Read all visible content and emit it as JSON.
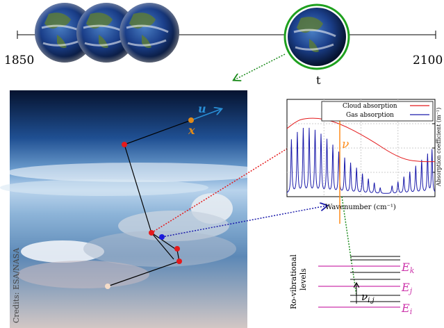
{
  "timeline": {
    "start_label": "1850",
    "end_label": "2100",
    "current_label": "t"
  },
  "photo": {
    "credit": "Credits: ESA/NASA",
    "ray_label_u": "u",
    "ray_label_x": "x"
  },
  "spectrum": {
    "xlabel": "Wavenumber (cm⁻¹)",
    "ylabel": "Absorption coefficient (m⁻¹)",
    "nu_label": "ν",
    "legend": [
      {
        "name": "Cloud absorption",
        "color": "#e41a1c"
      },
      {
        "name": "Gas absorption",
        "color": "#1a1aaa"
      }
    ]
  },
  "levels": {
    "title": "Ro-vibrational levels",
    "labels": {
      "k": "E",
      "j": "E",
      "i": "E"
    },
    "subscripts": {
      "k": "k",
      "j": "j",
      "i": "i"
    },
    "transition": "ν",
    "transition_sub": "i,j"
  },
  "colors": {
    "cloud": "#e41a1c",
    "gas": "#1a1aaa",
    "nu": "#ff8c1a",
    "levels": "#cc33aa",
    "u_arrow": "#2a8fd6",
    "x_point": "#e08a1a"
  },
  "chart_data": {
    "type": "line",
    "title": "",
    "xlabel": "Wavenumber (cm⁻¹)",
    "ylabel": "Absorption coefficient (m⁻¹)",
    "series": [
      {
        "name": "Cloud absorption",
        "points": [
          [
            0,
            0.7
          ],
          [
            0.05,
            0.76
          ],
          [
            0.1,
            0.8
          ],
          [
            0.2,
            0.81
          ],
          [
            0.3,
            0.78
          ],
          [
            0.4,
            0.72
          ],
          [
            0.5,
            0.64
          ],
          [
            0.6,
            0.55
          ],
          [
            0.7,
            0.45
          ],
          [
            0.8,
            0.38
          ],
          [
            0.9,
            0.36
          ],
          [
            1.0,
            0.36
          ]
        ]
      },
      {
        "name": "Gas absorption",
        "lines": [
          [
            0.03,
            0.55
          ],
          [
            0.07,
            0.62
          ],
          [
            0.11,
            0.66
          ],
          [
            0.15,
            0.66
          ],
          [
            0.19,
            0.64
          ],
          [
            0.23,
            0.6
          ],
          [
            0.27,
            0.55
          ],
          [
            0.31,
            0.49
          ],
          [
            0.35,
            0.42
          ],
          [
            0.39,
            0.36
          ],
          [
            0.43,
            0.31
          ],
          [
            0.47,
            0.26
          ],
          [
            0.51,
            0.2
          ],
          [
            0.55,
            0.15
          ],
          [
            0.59,
            0.11
          ],
          [
            0.63,
            0.06
          ],
          [
            0.71,
            0.08
          ],
          [
            0.75,
            0.12
          ],
          [
            0.79,
            0.17
          ],
          [
            0.83,
            0.22
          ],
          [
            0.87,
            0.28
          ],
          [
            0.91,
            0.34
          ],
          [
            0.95,
            0.4
          ],
          [
            0.98,
            0.45
          ]
        ]
      }
    ]
  }
}
